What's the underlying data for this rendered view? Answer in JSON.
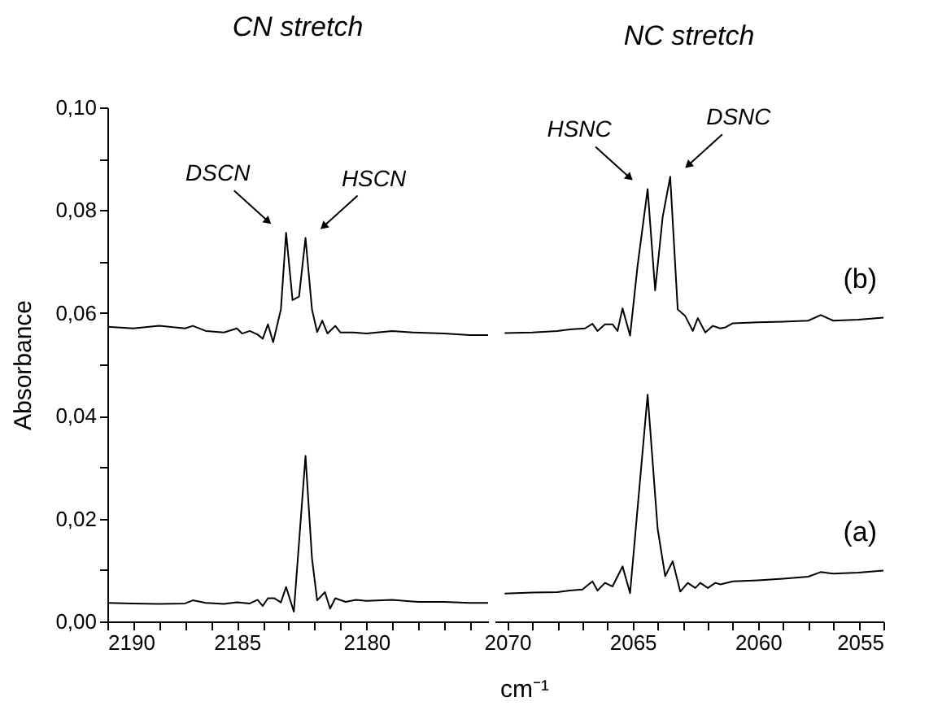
{
  "chart_data": [
    {
      "type": "line",
      "title": "CN stretch",
      "ylabel": "Absorbance",
      "xlabel": "cm⁻¹",
      "xlim": [
        2190,
        2175.3
      ],
      "ylim": [
        0,
        0.1
      ],
      "xticks": [
        2190,
        {
          "value": 2189,
          "label": null
        },
        {
          "value": 2188,
          "label": null
        },
        {
          "value": 2187,
          "label": null
        },
        {
          "value": 2186,
          "label": null
        },
        2185,
        {
          "value": 2184,
          "label": null
        },
        {
          "value": 2183,
          "label": null
        },
        {
          "value": 2182,
          "label": null
        },
        {
          "value": 2181,
          "label": null
        },
        2180,
        {
          "value": 2179,
          "label": null
        },
        {
          "value": 2178,
          "label": null
        },
        {
          "value": 2177,
          "label": null
        },
        {
          "value": 2176,
          "label": null
        }
      ],
      "yticks": [
        {
          "value": 0,
          "label": "0,00"
        },
        {
          "value": 0.01,
          "label": null
        },
        {
          "value": 0.02,
          "label": "0,02"
        },
        {
          "value": 0.03,
          "label": null
        },
        {
          "value": 0.04,
          "label": "0,04"
        },
        {
          "value": 0.05,
          "label": null
        },
        {
          "value": 0.06,
          "label": "0,06"
        },
        {
          "value": 0.07,
          "label": null
        },
        {
          "value": 0.08,
          "label": "0,08"
        },
        {
          "value": 0.09,
          "label": null
        },
        {
          "value": 0.1,
          "label": "0,10"
        }
      ],
      "annotations": [
        {
          "text": "DSCN",
          "x": 2183.1,
          "y": 0.0756
        },
        {
          "text": "HSCN",
          "x": 2182.35,
          "y": 0.0746
        }
      ],
      "series": [
        {
          "color": "#000000",
          "x": [
            2190,
            2189,
            2188,
            2187,
            2186.7,
            2186.2,
            2185.5,
            2185,
            2184.8,
            2184.5,
            2184.2,
            2184,
            2183.8,
            2183.6,
            2183.3,
            2183.1,
            2182.85,
            2182.6,
            2182.35,
            2182.1,
            2181.9,
            2181.7,
            2181.5,
            2181.2,
            2181,
            2180.5,
            2180,
            2179,
            2178.2,
            2177,
            2176,
            2175.3
          ],
          "values": [
            0.0573,
            0.057,
            0.0575,
            0.057,
            0.0575,
            0.0565,
            0.0562,
            0.057,
            0.056,
            0.0565,
            0.0558,
            0.055,
            0.0578,
            0.0543,
            0.0607,
            0.0756,
            0.0625,
            0.0632,
            0.0746,
            0.0607,
            0.0563,
            0.0585,
            0.056,
            0.0575,
            0.0562,
            0.0562,
            0.056,
            0.0565,
            0.0562,
            0.056,
            0.0557,
            0.0557
          ]
        },
        {
          "color": "#000000",
          "x": [
            2190,
            2189,
            2188,
            2187,
            2186.7,
            2186.2,
            2185.5,
            2185,
            2184.5,
            2184.2,
            2184,
            2183.8,
            2183.55,
            2183.3,
            2183.1,
            2182.8,
            2182.35,
            2182.1,
            2181.9,
            2181.6,
            2181.4,
            2181.2,
            2180.8,
            2180.4,
            2180,
            2179,
            2178,
            2177,
            2176,
            2175.3
          ],
          "values": [
            0.0036,
            0.0035,
            0.0034,
            0.0035,
            0.0041,
            0.0036,
            0.0034,
            0.0037,
            0.0035,
            0.0042,
            0.003,
            0.0045,
            0.0045,
            0.0037,
            0.0067,
            0.0019,
            0.0322,
            0.0123,
            0.0041,
            0.0057,
            0.0025,
            0.0045,
            0.0038,
            0.0042,
            0.004,
            0.0042,
            0.0038,
            0.0038,
            0.0036,
            0.0036
          ]
        }
      ]
    },
    {
      "type": "line",
      "title": "NC stretch",
      "tick_labels": "x",
      "xlim": [
        2070.5,
        2055
      ],
      "ylim": [
        0,
        0.1
      ],
      "xticks": [
        2070,
        {
          "value": 2069,
          "label": null
        },
        {
          "value": 2068,
          "label": null
        },
        {
          "value": 2067,
          "label": null
        },
        {
          "value": 2066,
          "label": null
        },
        2065,
        {
          "value": 2064,
          "label": null
        },
        {
          "value": 2063,
          "label": null
        },
        {
          "value": 2062,
          "label": null
        },
        {
          "value": 2061,
          "label": null
        },
        2060,
        {
          "value": 2059,
          "label": null
        },
        {
          "value": 2058,
          "label": null
        },
        {
          "value": 2057,
          "label": null
        },
        {
          "value": 2056,
          "label": null
        },
        2055
      ],
      "annotations": [
        {
          "text": "HSNC",
          "x": 2064.4,
          "y": 0.0841
        },
        {
          "text": "DSNC",
          "x": 2063.5,
          "y": 0.0865
        }
      ],
      "series": [
        {
          "name": "(b)",
          "color": "#000000",
          "x": [
            2070.1,
            2069,
            2068,
            2067.5,
            2066.9,
            2066.6,
            2066.4,
            2066.1,
            2065.8,
            2065.6,
            2065.4,
            2065.1,
            2064.8,
            2064.4,
            2064.1,
            2063.8,
            2063.5,
            2063.2,
            2062.9,
            2062.6,
            2062.4,
            2062.1,
            2061.8,
            2061.5,
            2061.3,
            2061,
            2060,
            2059,
            2058,
            2057.5,
            2057,
            2056,
            2055
          ],
          "values": [
            0.0561,
            0.0562,
            0.0565,
            0.0568,
            0.057,
            0.0579,
            0.0565,
            0.0578,
            0.0578,
            0.0565,
            0.0609,
            0.0556,
            0.0692,
            0.0841,
            0.0644,
            0.0787,
            0.0865,
            0.0607,
            0.0594,
            0.0565,
            0.059,
            0.0562,
            0.0575,
            0.057,
            0.0572,
            0.058,
            0.0582,
            0.0583,
            0.0585,
            0.0596,
            0.0585,
            0.0587,
            0.0591
          ]
        },
        {
          "name": "(a)",
          "color": "#000000",
          "x": [
            2070.1,
            2069,
            2068,
            2067.5,
            2067,
            2066.9,
            2066.6,
            2066.4,
            2066.1,
            2065.8,
            2065.4,
            2065.1,
            2064.4,
            2064,
            2063.7,
            2063.4,
            2063.1,
            2062.8,
            2062.5,
            2062.3,
            2062,
            2061.7,
            2061.5,
            2061,
            2060,
            2059,
            2058,
            2057.5,
            2057,
            2056,
            2055
          ],
          "values": [
            0.0054,
            0.0056,
            0.0057,
            0.006,
            0.0062,
            0.0066,
            0.0078,
            0.006,
            0.0075,
            0.0068,
            0.0107,
            0.0055,
            0.0441,
            0.018,
            0.0088,
            0.0117,
            0.0058,
            0.0075,
            0.0065,
            0.0075,
            0.0065,
            0.0075,
            0.0072,
            0.0078,
            0.008,
            0.0083,
            0.0087,
            0.0096,
            0.0093,
            0.0095,
            0.0099
          ]
        }
      ]
    }
  ]
}
